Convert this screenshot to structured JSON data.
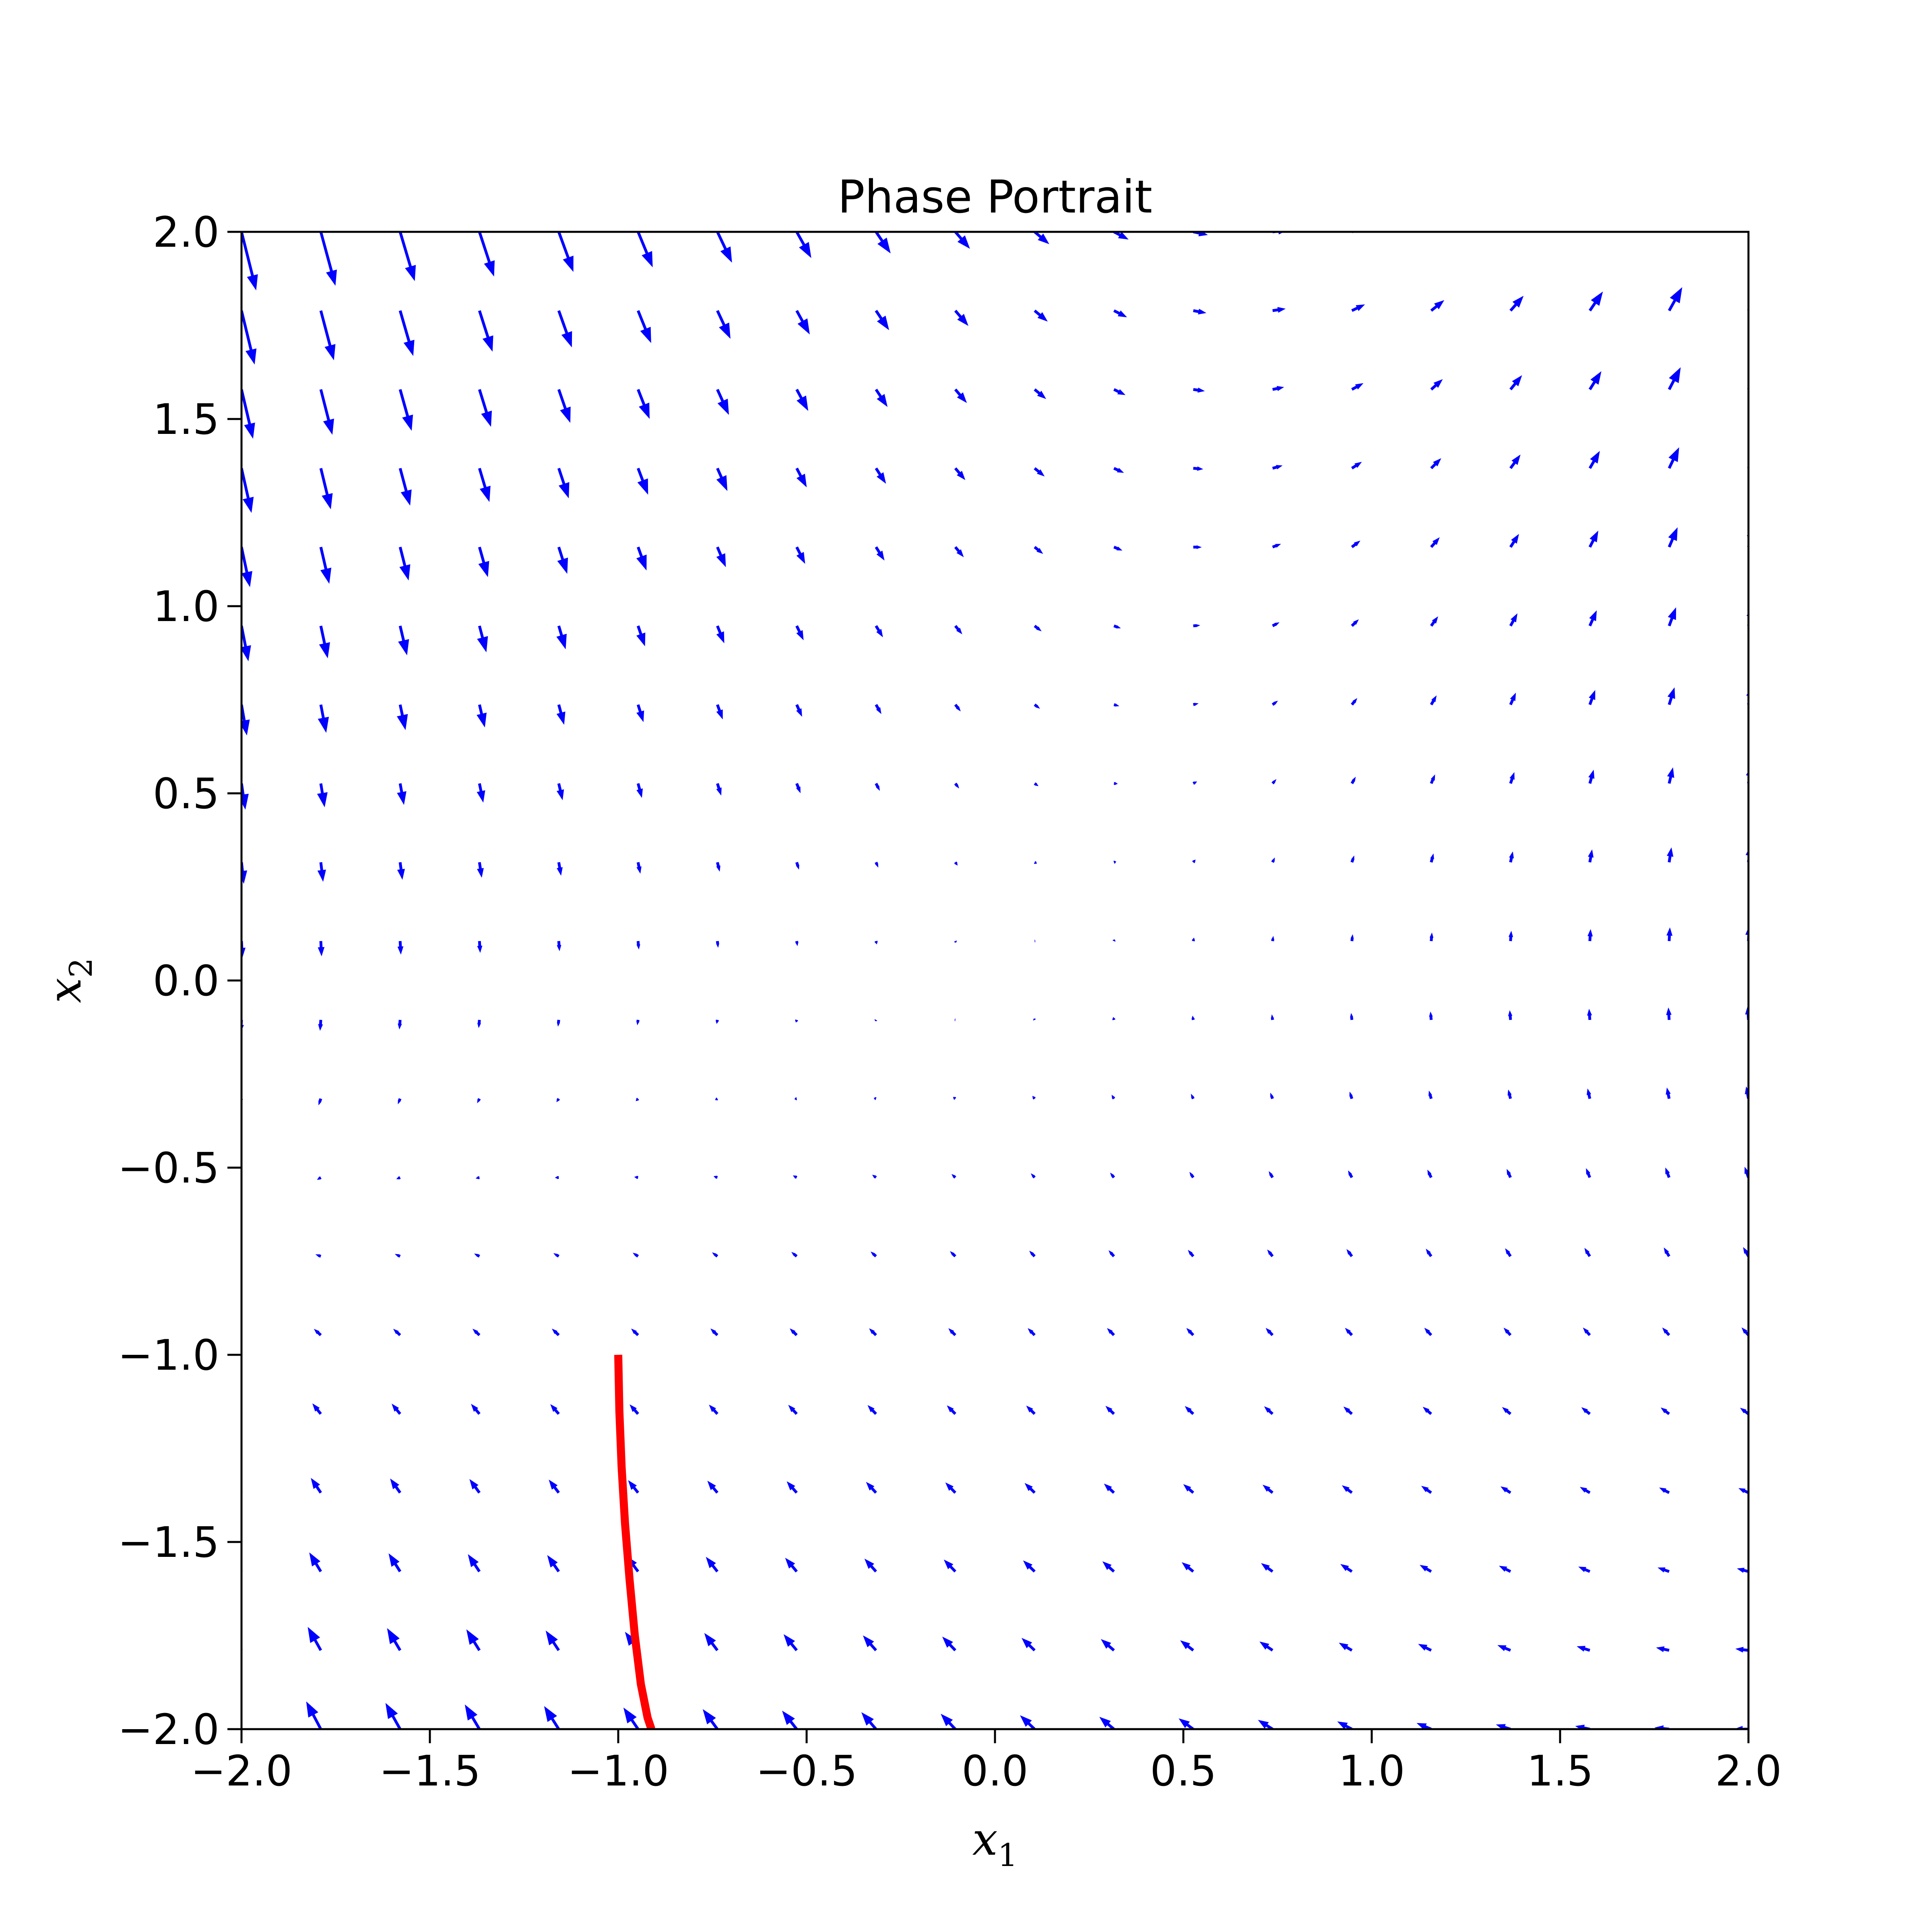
{
  "chart_data": {
    "type": "quiver",
    "title": "Phase Portrait",
    "xlabel": {
      "symbol": "x",
      "subscript": "1"
    },
    "ylabel": {
      "symbol": "x",
      "subscript": "2"
    },
    "xlim": [
      -2.0,
      2.0
    ],
    "ylim": [
      -2.0,
      2.0
    ],
    "xticks": [
      -2.0,
      -1.5,
      -1.0,
      -0.5,
      0.0,
      0.5,
      1.0,
      1.5,
      2.0
    ],
    "yticks": [
      -2.0,
      -1.5,
      -1.0,
      -0.5,
      0.0,
      0.5,
      1.0,
      1.5,
      2.0
    ],
    "xtick_labels": [
      "−2.0",
      "−1.5",
      "−1.0",
      "−0.5",
      "0.0",
      "0.5",
      "1.0",
      "1.5",
      "2.0"
    ],
    "ytick_labels": [
      "−2.0",
      "−1.5",
      "−1.0",
      "−0.5",
      "0.0",
      "0.5",
      "1.0",
      "1.5",
      "2.0"
    ],
    "grid": false,
    "vector_field": {
      "color": "#0000ff",
      "x_range": [
        -2.0,
        2.0
      ],
      "y_range": [
        -2.0,
        2.0
      ],
      "count": 20,
      "u": "x2",
      "v": "x1 + x1*x2 - x2"
    },
    "trajectory": {
      "color": "#ff0000",
      "start": [
        -1.0,
        -1.0
      ],
      "x": [
        -1.0,
        -0.997,
        -0.991,
        -0.982,
        -0.97,
        -0.956,
        -0.94,
        -0.922,
        -0.912
      ],
      "y": [
        -1.0,
        -1.15,
        -1.3,
        -1.45,
        -1.6,
        -1.75,
        -1.88,
        -1.97,
        -2.0
      ]
    }
  }
}
